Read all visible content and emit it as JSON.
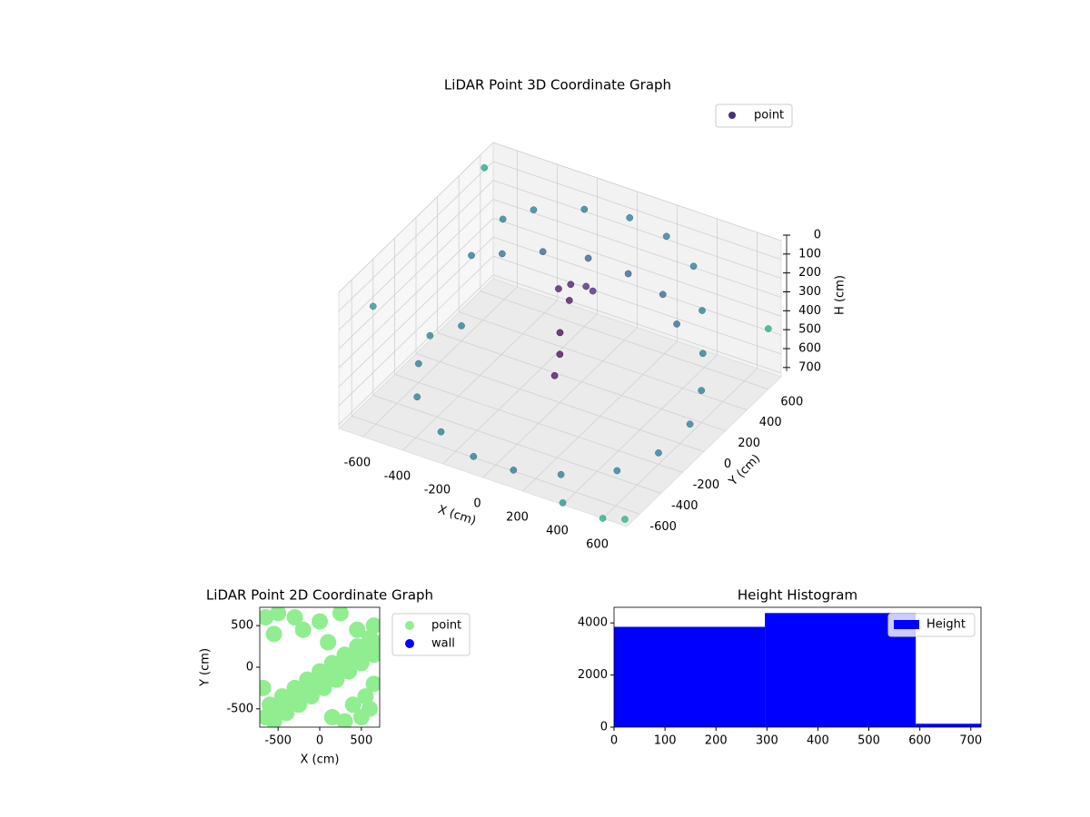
{
  "chart_data": [
    {
      "type": "scatter3d",
      "title": "LiDAR Point 3D Coordinate Graph",
      "x_label": "X (cm)",
      "y_label": "Y (cm)",
      "z_label": "H (cm)",
      "xlim": [
        -720,
        720
      ],
      "ylim": [
        -720,
        720
      ],
      "zlim": [
        0,
        720
      ],
      "z_inverted": true,
      "xticks": [
        -600,
        -400,
        -200,
        0,
        200,
        400,
        600
      ],
      "yticks": [
        -600,
        -400,
        -200,
        0,
        200,
        400,
        600
      ],
      "zticks": [
        0,
        100,
        200,
        300,
        400,
        500,
        600,
        700
      ],
      "colormap": "viridis",
      "legend": "upper right",
      "series": [
        {
          "name": "point",
          "color": "#46327e",
          "x": [
            -500,
            -400,
            -200,
            0,
            200,
            400,
            550,
            -550,
            -450,
            -300,
            -100,
            100,
            300,
            450,
            0,
            50,
            -50,
            100,
            20,
            0,
            10,
            0,
            -600,
            -500,
            -300,
            -100,
            100,
            300,
            500,
            600,
            650,
            600,
            500,
            -650,
            -600,
            -700,
            -720,
            700,
            720,
            600,
            400
          ],
          "y": [
            400,
            500,
            600,
            650,
            620,
            500,
            300,
            200,
            300,
            400,
            450,
            450,
            400,
            250,
            100,
            150,
            80,
            120,
            50,
            0,
            -20,
            -50,
            -200,
            -400,
            -550,
            -620,
            -620,
            -550,
            -400,
            -200,
            0,
            200,
            400,
            0,
            200,
            600,
            -400,
            -700,
            600,
            -720,
            -720
          ],
          "z": [
            150,
            120,
            100,
            100,
            110,
            130,
            200,
            250,
            260,
            250,
            240,
            250,
            260,
            280,
            150,
            170,
            180,
            160,
            200,
            350,
            450,
            550,
            620,
            650,
            680,
            700,
            700,
            690,
            680,
            660,
            600,
            550,
            500,
            600,
            640,
            60,
            250,
            700,
            400,
            720,
            710
          ]
        }
      ]
    },
    {
      "type": "scatter",
      "title": "LiDAR Point 2D Coordinate Graph",
      "x_label": "X (cm)",
      "y_label": "Y (cm)",
      "xlim": [
        -720,
        720
      ],
      "ylim": [
        -720,
        720
      ],
      "xticks": [
        -500,
        0,
        500
      ],
      "yticks": [
        -500,
        0,
        500
      ],
      "legend": "outside right",
      "series": [
        {
          "name": "point",
          "color": "#90ee90",
          "x": [
            -650,
            -500,
            -350,
            -200,
            -50,
            100,
            250,
            400,
            550,
            650,
            -600,
            -450,
            -300,
            -150,
            0,
            150,
            300,
            450,
            600,
            -550,
            -400,
            -250,
            -100,
            50,
            200,
            350,
            500,
            650,
            -650,
            -500,
            -300,
            0,
            250,
            450,
            650,
            -680,
            500,
            600,
            300,
            150,
            650,
            -550,
            -200,
            550,
            400,
            100
          ],
          "y": [
            -600,
            -500,
            -400,
            -300,
            -200,
            -100,
            0,
            100,
            200,
            300,
            -450,
            -350,
            -250,
            -150,
            -50,
            50,
            150,
            250,
            350,
            -650,
            -550,
            -450,
            -350,
            -250,
            -150,
            -50,
            50,
            150,
            600,
            650,
            600,
            550,
            650,
            450,
            500,
            -250,
            -600,
            -500,
            -650,
            -600,
            -200,
            400,
            450,
            -350,
            -450,
            300
          ]
        },
        {
          "name": "wall",
          "color": "#0000ff",
          "x": [],
          "y": []
        }
      ]
    },
    {
      "type": "histogram",
      "title": "Height Histogram",
      "xlim": [
        0,
        720
      ],
      "ylim": [
        0,
        4600
      ],
      "xticks": [
        0,
        100,
        200,
        300,
        400,
        500,
        600,
        700
      ],
      "yticks": [
        0,
        2000,
        4000
      ],
      "legend": "upper right",
      "series": [
        {
          "name": "Height",
          "color": "#0000ff",
          "bins": [
            0,
            296,
            592,
            720
          ],
          "values": [
            3850,
            4380,
            130
          ]
        }
      ]
    }
  ]
}
